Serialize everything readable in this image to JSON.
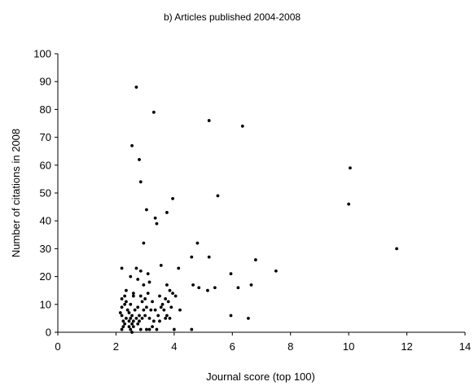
{
  "chart_data": {
    "type": "scatter",
    "title": "b) Articles published 2004-2008",
    "xlabel": "Journal score (top 100)",
    "ylabel": "Number of citations in 2008",
    "xlim": [
      0,
      14
    ],
    "ylim": [
      0,
      100
    ],
    "xticks": [
      "0",
      "2",
      "4",
      "6",
      "8",
      "10",
      "12",
      "14"
    ],
    "yticks": [
      "0",
      "10",
      "20",
      "30",
      "40",
      "50",
      "60",
      "70",
      "80",
      "90",
      "100"
    ],
    "grid": false,
    "legend": "none",
    "marker_color": "#000000",
    "points": [
      [
        2.7,
        88
      ],
      [
        3.3,
        79
      ],
      [
        5.2,
        76
      ],
      [
        6.35,
        74
      ],
      [
        2.55,
        67
      ],
      [
        2.8,
        62
      ],
      [
        10.05,
        59
      ],
      [
        2.85,
        54
      ],
      [
        5.5,
        49
      ],
      [
        3.95,
        48
      ],
      [
        10.0,
        46
      ],
      [
        3.05,
        44
      ],
      [
        3.75,
        43
      ],
      [
        3.35,
        41
      ],
      [
        3.4,
        39
      ],
      [
        2.95,
        32
      ],
      [
        4.8,
        32
      ],
      [
        11.65,
        30
      ],
      [
        4.6,
        27
      ],
      [
        5.2,
        27
      ],
      [
        6.8,
        26
      ],
      [
        2.2,
        23
      ],
      [
        2.7,
        23
      ],
      [
        3.55,
        24
      ],
      [
        4.15,
        23
      ],
      [
        7.5,
        22
      ],
      [
        2.85,
        22
      ],
      [
        3.1,
        21
      ],
      [
        5.95,
        21
      ],
      [
        2.5,
        20
      ],
      [
        2.75,
        19
      ],
      [
        3.15,
        18
      ],
      [
        2.95,
        17
      ],
      [
        3.75,
        17
      ],
      [
        4.65,
        17
      ],
      [
        4.85,
        16
      ],
      [
        5.4,
        16
      ],
      [
        6.2,
        16
      ],
      [
        6.65,
        17
      ],
      [
        5.15,
        15
      ],
      [
        2.35,
        15
      ],
      [
        2.6,
        14
      ],
      [
        3.1,
        14
      ],
      [
        3.85,
        15
      ],
      [
        3.95,
        14
      ],
      [
        2.3,
        13
      ],
      [
        2.6,
        13
      ],
      [
        2.85,
        13
      ],
      [
        3.0,
        12
      ],
      [
        3.5,
        13
      ],
      [
        3.7,
        12
      ],
      [
        4.05,
        13
      ],
      [
        2.2,
        12
      ],
      [
        2.35,
        11
      ],
      [
        2.9,
        11
      ],
      [
        3.25,
        11
      ],
      [
        3.6,
        10
      ],
      [
        3.8,
        11
      ],
      [
        2.3,
        10
      ],
      [
        2.5,
        10
      ],
      [
        2.75,
        9
      ],
      [
        3.05,
        9
      ],
      [
        3.55,
        9
      ],
      [
        3.9,
        9
      ],
      [
        2.2,
        9
      ],
      [
        2.4,
        8
      ],
      [
        2.65,
        8
      ],
      [
        2.95,
        8
      ],
      [
        3.2,
        8
      ],
      [
        3.35,
        8
      ],
      [
        3.65,
        8
      ],
      [
        4.2,
        8
      ],
      [
        2.15,
        7
      ],
      [
        2.45,
        7
      ],
      [
        2.55,
        6
      ],
      [
        2.8,
        6
      ],
      [
        3.0,
        6
      ],
      [
        3.45,
        6
      ],
      [
        3.75,
        6
      ],
      [
        2.2,
        6
      ],
      [
        2.35,
        5
      ],
      [
        2.5,
        5
      ],
      [
        2.7,
        5
      ],
      [
        2.9,
        5
      ],
      [
        3.15,
        5
      ],
      [
        3.7,
        5
      ],
      [
        3.85,
        5
      ],
      [
        5.95,
        6
      ],
      [
        6.55,
        5
      ],
      [
        2.25,
        4
      ],
      [
        2.45,
        4
      ],
      [
        2.6,
        4
      ],
      [
        2.8,
        4
      ],
      [
        3.3,
        4
      ],
      [
        3.5,
        4
      ],
      [
        2.3,
        3
      ],
      [
        2.55,
        3
      ],
      [
        2.75,
        3
      ],
      [
        3.25,
        2
      ],
      [
        2.25,
        2
      ],
      [
        2.45,
        2
      ],
      [
        2.6,
        2
      ],
      [
        2.85,
        1
      ],
      [
        3.05,
        1
      ],
      [
        3.4,
        1
      ],
      [
        2.5,
        1
      ],
      [
        2.55,
        0
      ],
      [
        3.15,
        1
      ],
      [
        4.0,
        1
      ],
      [
        4.6,
        1
      ],
      [
        2.2,
        1
      ]
    ]
  }
}
